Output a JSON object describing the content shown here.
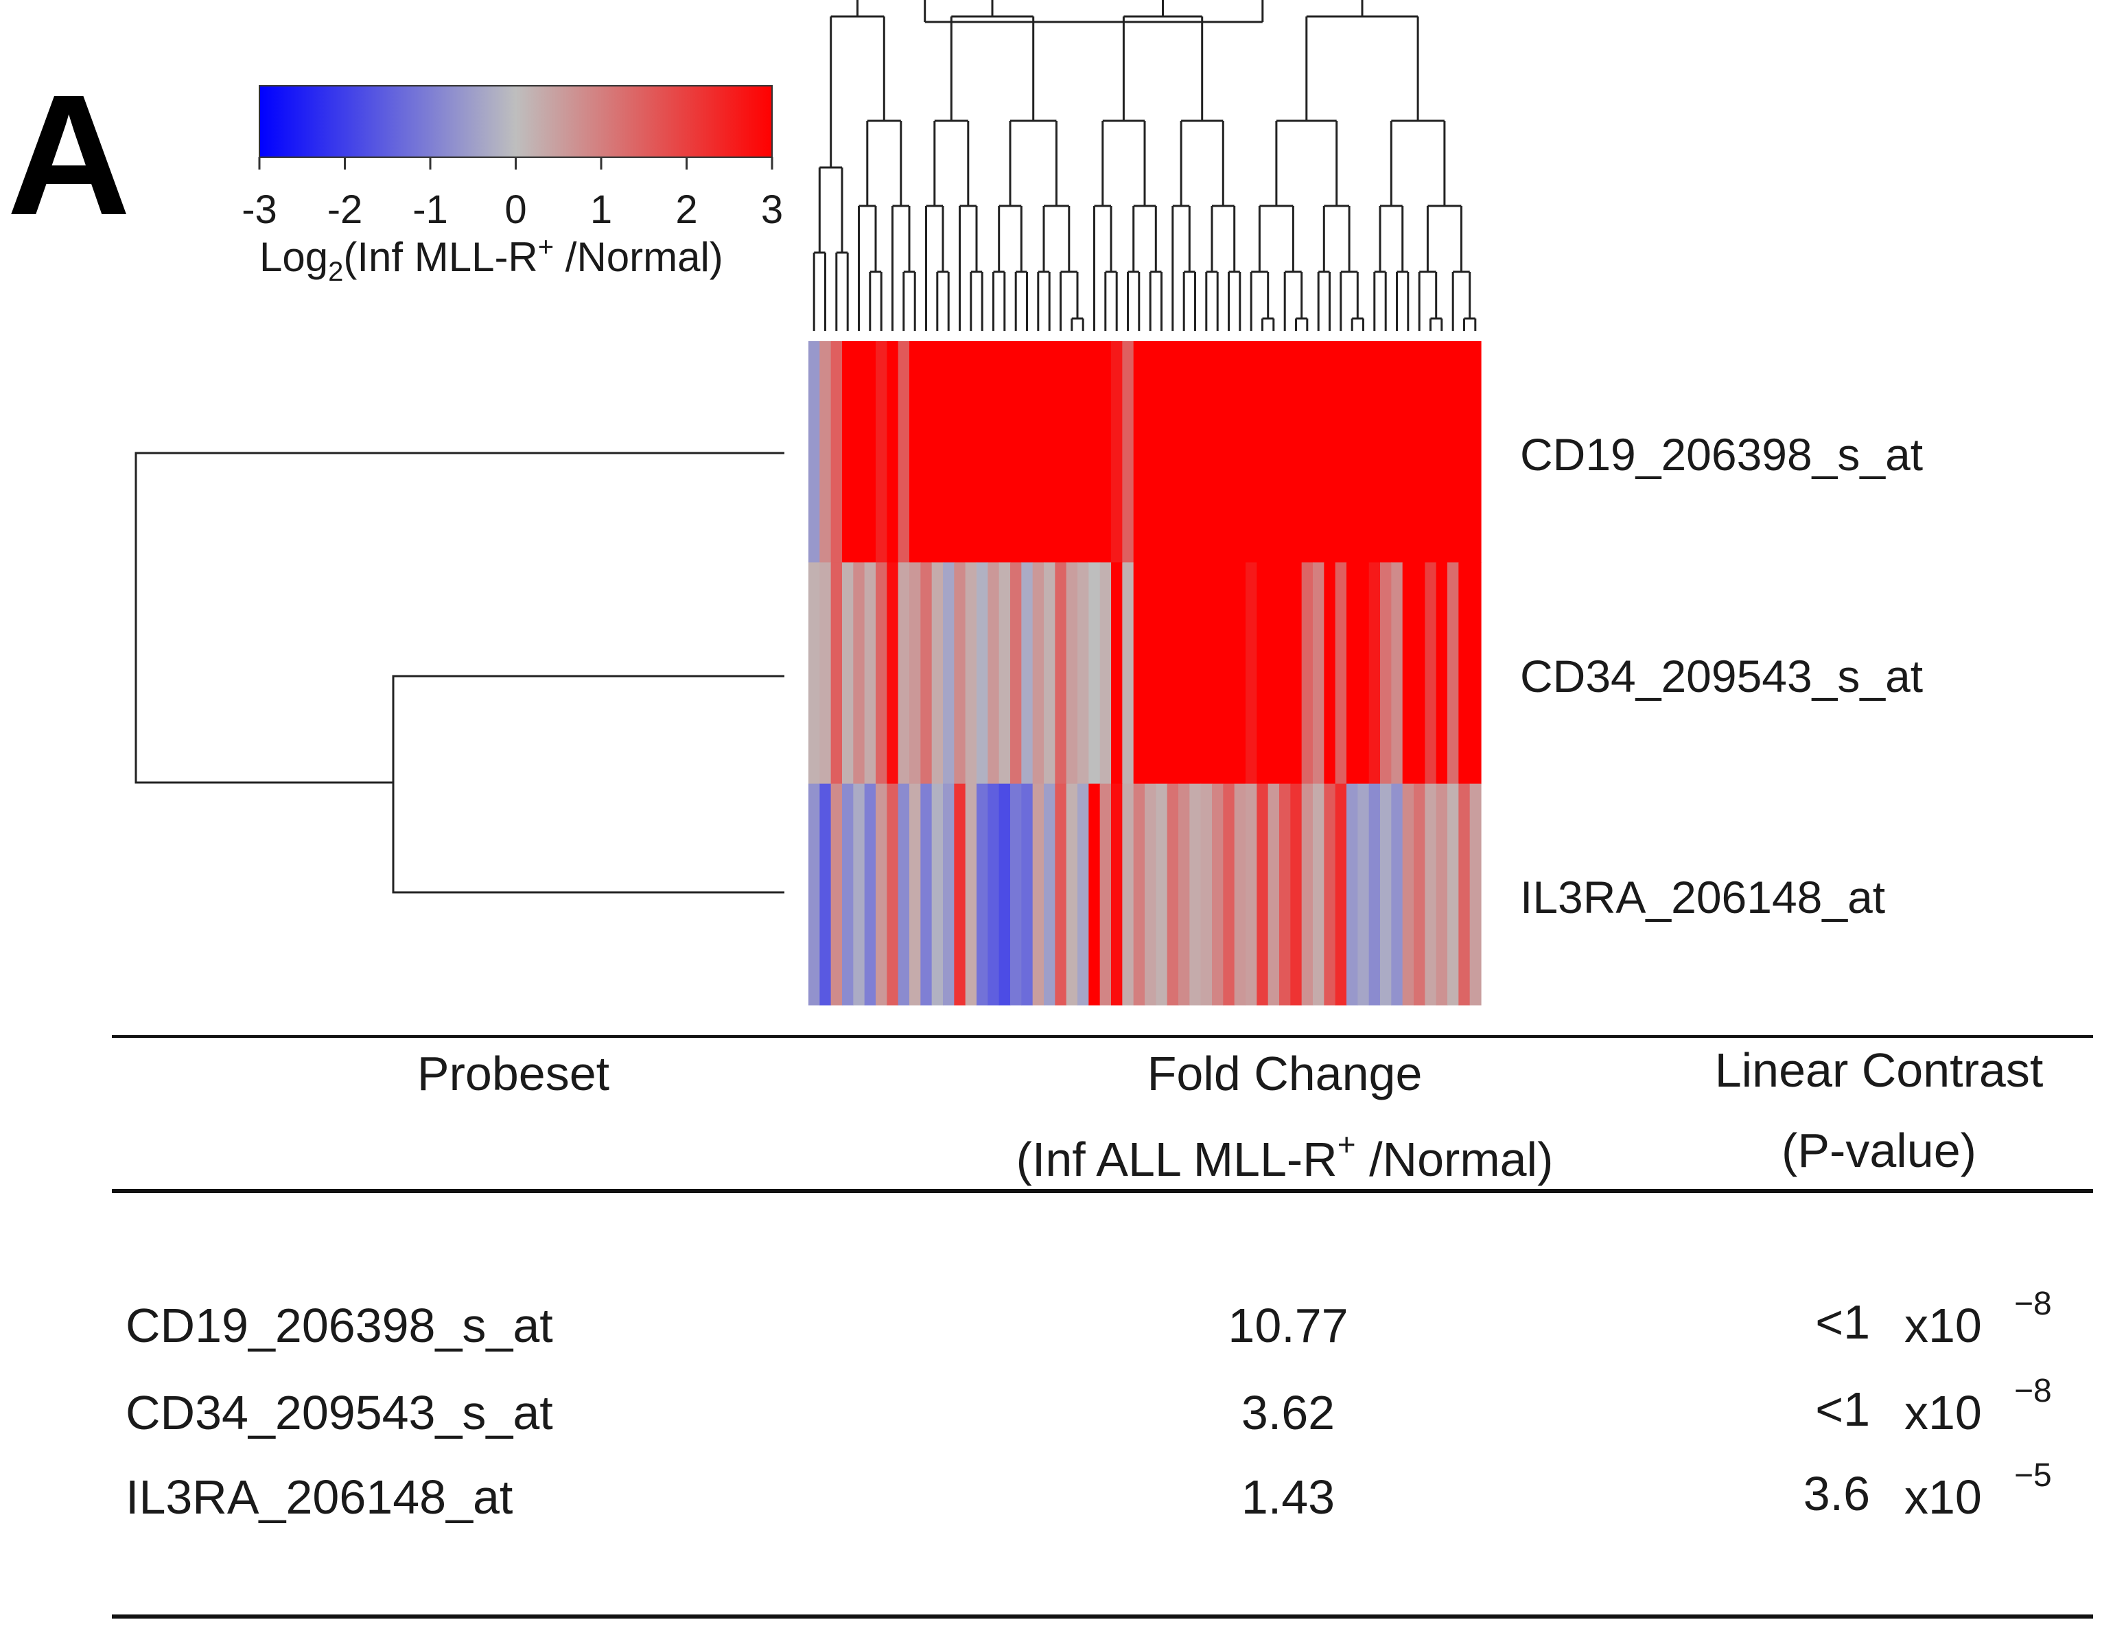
{
  "panel_label": "A",
  "chart_data": {
    "type": "heatmap",
    "rows": [
      "CD19_206398_s_at",
      "CD34_209543_s_at",
      "IL3RA_206148_at"
    ],
    "n_columns": 60,
    "values": [
      [
        -0.6,
        0.8,
        1.5,
        3,
        3,
        3,
        2.5,
        3,
        1.6,
        3,
        3,
        3,
        3,
        3,
        3,
        3,
        3,
        3,
        3,
        3,
        3,
        3,
        3,
        3,
        3,
        3,
        3,
        2.6,
        1.5,
        3,
        3,
        3,
        3,
        3,
        3,
        3,
        3,
        3,
        3,
        3,
        3,
        3,
        3,
        3,
        3,
        3,
        3,
        3,
        3,
        3,
        3,
        3,
        3,
        3,
        3,
        3,
        3,
        3,
        3,
        3
      ],
      [
        0.2,
        0.3,
        1.5,
        0.2,
        0.8,
        0.3,
        1.4,
        2.8,
        0.4,
        0.6,
        1.2,
        0.3,
        -0.4,
        0.8,
        0.3,
        -0.2,
        0.6,
        0.2,
        1.2,
        -0.3,
        0.6,
        0.2,
        1.4,
        0.5,
        0.3,
        0,
        0.2,
        3,
        0.2,
        3,
        3,
        3,
        3,
        3,
        3,
        3,
        3,
        3,
        3,
        2.6,
        3,
        3,
        3,
        3,
        1.4,
        1,
        3,
        1.5,
        3,
        3,
        2.6,
        1.2,
        0.8,
        3,
        3,
        2,
        3,
        1.3,
        3,
        3
      ],
      [
        -0.7,
        -1.6,
        0.8,
        -0.8,
        -0.3,
        -1,
        0.6,
        1.5,
        -0.8,
        0.3,
        -1,
        -0.2,
        -0.6,
        2.2,
        0.3,
        -1.2,
        -1.5,
        -1.8,
        -1.1,
        -1.3,
        0.5,
        -0.5,
        1.6,
        0.2,
        -0.4,
        3,
        0.9,
        2.8,
        0.3,
        1,
        0.4,
        0.2,
        1.2,
        0.8,
        0.3,
        0.4,
        0.9,
        1.5,
        0.6,
        0.5,
        2,
        0.6,
        1.6,
        2.2,
        0.7,
        0.3,
        1.6,
        2.3,
        -0.6,
        -0.4,
        -0.8,
        -0.3,
        -0.7,
        0.8,
        1.2,
        0.4,
        0.7,
        0.2,
        1.4,
        0.5
      ]
    ],
    "color_scale": {
      "title_main": "Log",
      "title_sub": "2",
      "title_rest_1": "(Inf MLL-R",
      "title_sup": "+",
      "title_rest_2": " /Normal)",
      "min": -3,
      "max": 3,
      "ticks": [
        "-3",
        "-2",
        "-1",
        "0",
        "1",
        "2",
        "3"
      ],
      "colors": {
        "low": "#0000ff",
        "mid": "#bebebe",
        "high": "#ff0000"
      }
    },
    "row_dendrogram": [
      [
        1,
        2
      ],
      [
        0,
        "prev"
      ]
    ],
    "column_dendrogram": "hierarchical clustering over 60 samples",
    "table": {
      "headers": {
        "probeset": "Probeset",
        "fold_change_line1": "Fold Change",
        "fold_change_line2a": "(Inf ALL MLL-R",
        "fold_change_sup": "+",
        "fold_change_line2b": " /Normal)",
        "contrast_line1": "Linear Contrast",
        "contrast_line2": "(P-value)"
      },
      "rows": [
        {
          "probeset": "CD19_206398_s_at",
          "fold_change": "10.77",
          "p_mant": "<1",
          "p_base": "x10",
          "p_exp": "−8"
        },
        {
          "probeset": "CD34_209543_s_at",
          "fold_change": "3.62",
          "p_mant": "<1",
          "p_base": "x10",
          "p_exp": "−8"
        },
        {
          "probeset": "IL3RA_206148_at",
          "fold_change": "1.43",
          "p_mant": "3.6",
          "p_base": "x10",
          "p_exp": "−5"
        }
      ]
    }
  }
}
